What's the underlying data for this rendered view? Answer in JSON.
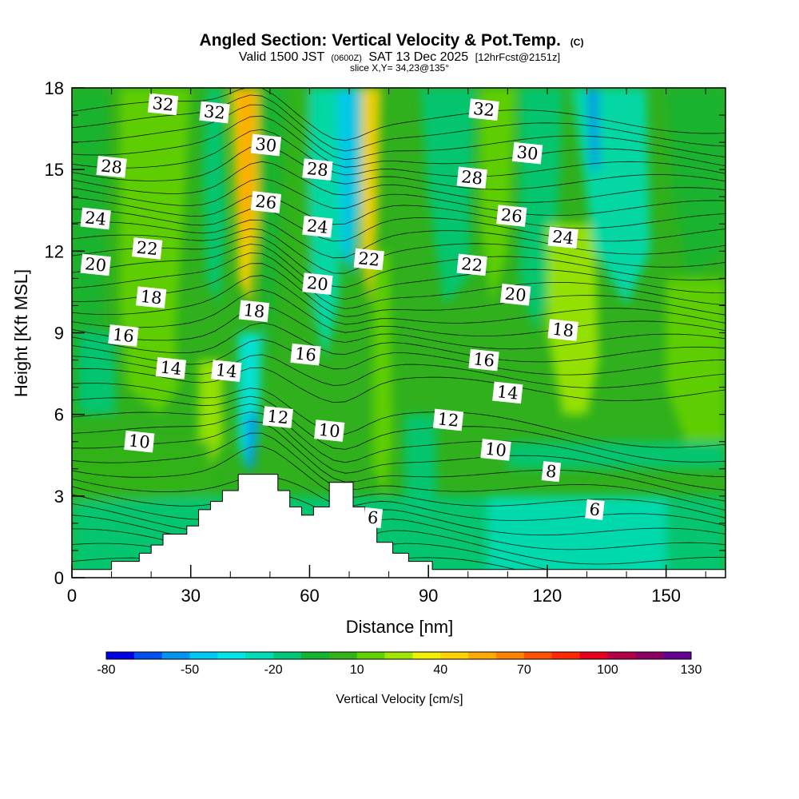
{
  "title": {
    "main": "Angled Section: Vertical Velocity & Pot.Temp.",
    "copyright": "(C)",
    "valid_prefix": "Valid 1500 JST",
    "valid_utc": "(0600Z)",
    "valid_date": "SAT 13 Dec 2025",
    "forecast": "[12hrFcst@2151z]",
    "slice": "slice X,Y= 34,23@135°"
  },
  "chart_data": {
    "type": "heatmap",
    "xlabel": "Distance [nm]",
    "ylabel": "Height [Kft MSL]",
    "xlim": [
      0,
      165
    ],
    "ylim": [
      0,
      18
    ],
    "x_ticks": [
      0,
      30,
      60,
      90,
      120,
      150
    ],
    "y_ticks": [
      0,
      3,
      6,
      9,
      12,
      15,
      18
    ],
    "x_tick_labels": [
      "0",
      "30",
      "60",
      "90",
      "120",
      "150"
    ],
    "y_tick_labels": [
      "0",
      "3",
      "6",
      "9",
      "12",
      "15",
      "18"
    ],
    "x_minor_step": 10,
    "y_minor_step": 1,
    "colorbar": {
      "title": "Vertical Velocity [cm/s]",
      "min": -80,
      "max": 130,
      "step": 10,
      "tick_values": [
        -80,
        -50,
        -20,
        10,
        40,
        70,
        100,
        130
      ],
      "tick_labels": [
        "-80",
        "-50",
        "-20",
        "10",
        "40",
        "70",
        "100",
        "130"
      ],
      "colors": [
        "#0000e6",
        "#0050f0",
        "#0096f0",
        "#00c8f5",
        "#00e6e6",
        "#00dcb4",
        "#00c878",
        "#14b432",
        "#32b414",
        "#64d200",
        "#a0e600",
        "#f0f000",
        "#ffd200",
        "#ffaa00",
        "#ff8200",
        "#ff5000",
        "#ff2800",
        "#e6001e",
        "#b40046",
        "#8c0064",
        "#640096"
      ]
    },
    "contour_labels": [
      {
        "text": "32",
        "x": 23,
        "y": 17.4
      },
      {
        "text": "32",
        "x": 36,
        "y": 17.1
      },
      {
        "text": "32",
        "x": 104,
        "y": 17.2
      },
      {
        "text": "30",
        "x": 49,
        "y": 15.9
      },
      {
        "text": "30",
        "x": 115,
        "y": 15.6
      },
      {
        "text": "28",
        "x": 10,
        "y": 15.1
      },
      {
        "text": "28",
        "x": 62,
        "y": 15.0
      },
      {
        "text": "28",
        "x": 101,
        "y": 14.7
      },
      {
        "text": "26",
        "x": 49,
        "y": 13.8
      },
      {
        "text": "26",
        "x": 111,
        "y": 13.3
      },
      {
        "text": "24",
        "x": 6,
        "y": 13.2
      },
      {
        "text": "24",
        "x": 62,
        "y": 12.9
      },
      {
        "text": "24",
        "x": 124,
        "y": 12.5
      },
      {
        "text": "22",
        "x": 19,
        "y": 12.1
      },
      {
        "text": "22",
        "x": 75,
        "y": 11.7
      },
      {
        "text": "22",
        "x": 101,
        "y": 11.5
      },
      {
        "text": "20",
        "x": 6,
        "y": 11.5
      },
      {
        "text": "20",
        "x": 62,
        "y": 10.8
      },
      {
        "text": "20",
        "x": 112,
        "y": 10.4
      },
      {
        "text": "18",
        "x": 20,
        "y": 10.3
      },
      {
        "text": "18",
        "x": 46,
        "y": 9.8
      },
      {
        "text": "18",
        "x": 124,
        "y": 9.1
      },
      {
        "text": "16",
        "x": 13,
        "y": 8.9
      },
      {
        "text": "16",
        "x": 59,
        "y": 8.2
      },
      {
        "text": "16",
        "x": 104,
        "y": 8.0
      },
      {
        "text": "14",
        "x": 25,
        "y": 7.7
      },
      {
        "text": "14",
        "x": 39,
        "y": 7.6
      },
      {
        "text": "14",
        "x": 110,
        "y": 6.8
      },
      {
        "text": "12",
        "x": 52,
        "y": 5.9
      },
      {
        "text": "12",
        "x": 95,
        "y": 5.8
      },
      {
        "text": "10",
        "x": 17,
        "y": 5.0
      },
      {
        "text": "10",
        "x": 65,
        "y": 5.4
      },
      {
        "text": "10",
        "x": 107,
        "y": 4.7
      },
      {
        "text": "8",
        "x": 121,
        "y": 3.9
      },
      {
        "text": "6",
        "x": 132,
        "y": 2.5
      },
      {
        "text": "6",
        "x": 76,
        "y": 2.2
      }
    ],
    "terrain_profile": [
      [
        0,
        0.3
      ],
      [
        10,
        0.3
      ],
      [
        10,
        0.6
      ],
      [
        17,
        0.6
      ],
      [
        17,
        0.9
      ],
      [
        20,
        0.9
      ],
      [
        20,
        1.2
      ],
      [
        23,
        1.2
      ],
      [
        23,
        1.6
      ],
      [
        29,
        1.6
      ],
      [
        29,
        1.9
      ],
      [
        32,
        1.9
      ],
      [
        32,
        2.5
      ],
      [
        35,
        2.5
      ],
      [
        35,
        2.8
      ],
      [
        38,
        2.8
      ],
      [
        38,
        3.2
      ],
      [
        42,
        3.2
      ],
      [
        42,
        3.8
      ],
      [
        52,
        3.8
      ],
      [
        52,
        3.2
      ],
      [
        55,
        3.2
      ],
      [
        55,
        2.6
      ],
      [
        58,
        2.6
      ],
      [
        58,
        2.3
      ],
      [
        61,
        2.3
      ],
      [
        61,
        2.6
      ],
      [
        65,
        2.6
      ],
      [
        65,
        3.5
      ],
      [
        71,
        3.5
      ],
      [
        71,
        2.6
      ],
      [
        74,
        2.6
      ],
      [
        74,
        2.2
      ],
      [
        77,
        2.2
      ],
      [
        77,
        1.3
      ],
      [
        81,
        1.3
      ],
      [
        81,
        0.9
      ],
      [
        85,
        0.9
      ],
      [
        85,
        0.6
      ],
      [
        91,
        0.6
      ],
      [
        91,
        0.3
      ],
      [
        165,
        0.3
      ]
    ]
  }
}
